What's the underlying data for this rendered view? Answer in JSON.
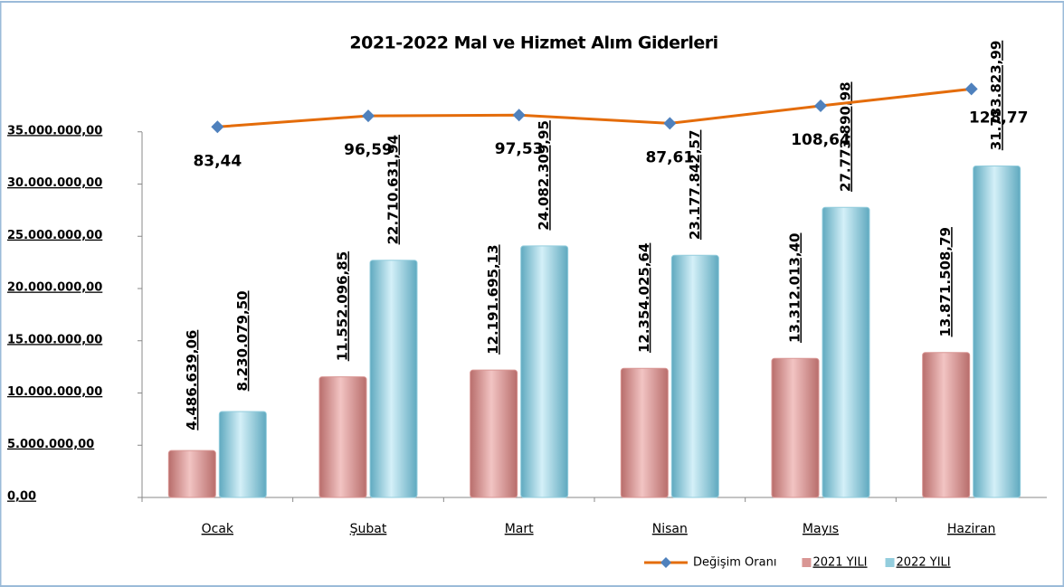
{
  "chart_data": {
    "type": "bar",
    "title": "2021-2022 Mal ve Hizmet Alım Giderleri",
    "categories": [
      "Ocak",
      "Şubat",
      "Mart",
      "Nisan",
      "Mayıs",
      "Haziran"
    ],
    "series": [
      {
        "name": "Değişim Oranı",
        "type": "line",
        "axis": "y2",
        "color": "#e46c0a",
        "marker_color": "#4f81bd",
        "values": [
          83.44,
          96.59,
          97.53,
          87.61,
          108.64,
          128.77
        ],
        "value_labels": [
          "83,44",
          "96,59",
          "97,53",
          "87,61",
          "108,64",
          "128,77"
        ]
      },
      {
        "name": "2021 YILI",
        "color": "#d99694",
        "values": [
          4486639.06,
          11552096.85,
          12191695.13,
          12354025.64,
          13312013.4,
          13871508.79
        ],
        "value_labels": [
          "4.486.639,06",
          "11.552.096,85",
          "12.191.695,13",
          "12.354.025,64",
          "13.312.013,40",
          "13.871.508,79"
        ]
      },
      {
        "name": "2022 YILI",
        "color": "#93cddd",
        "values": [
          8230079.5,
          22710631.94,
          24082309.95,
          23177842.57,
          27773890.98,
          31733823.99
        ],
        "value_labels": [
          "8.230.079,50",
          "22.710.631,94",
          "24.082.309,95",
          "23.177.842,57",
          "27.773.890,98",
          "31.733.823,99"
        ]
      }
    ],
    "ylim": [
      0,
      40000000
    ],
    "yticks": [
      {
        "value": 0,
        "label": "0,00"
      },
      {
        "value": 5000000,
        "label": "5.000.000,00"
      },
      {
        "value": 10000000,
        "label": "10.000.000,00"
      },
      {
        "value": 15000000,
        "label": "15.000.000,00"
      },
      {
        "value": 20000000,
        "label": "20.000.000,00"
      },
      {
        "value": 25000000,
        "label": "25.000.000,00"
      },
      {
        "value": 30000000,
        "label": "30.000.000,00"
      },
      {
        "value": 35000000,
        "label": "35.000.000,00"
      }
    ],
    "y2lim": [
      -360,
      140
    ],
    "legend": "bottom-right"
  }
}
